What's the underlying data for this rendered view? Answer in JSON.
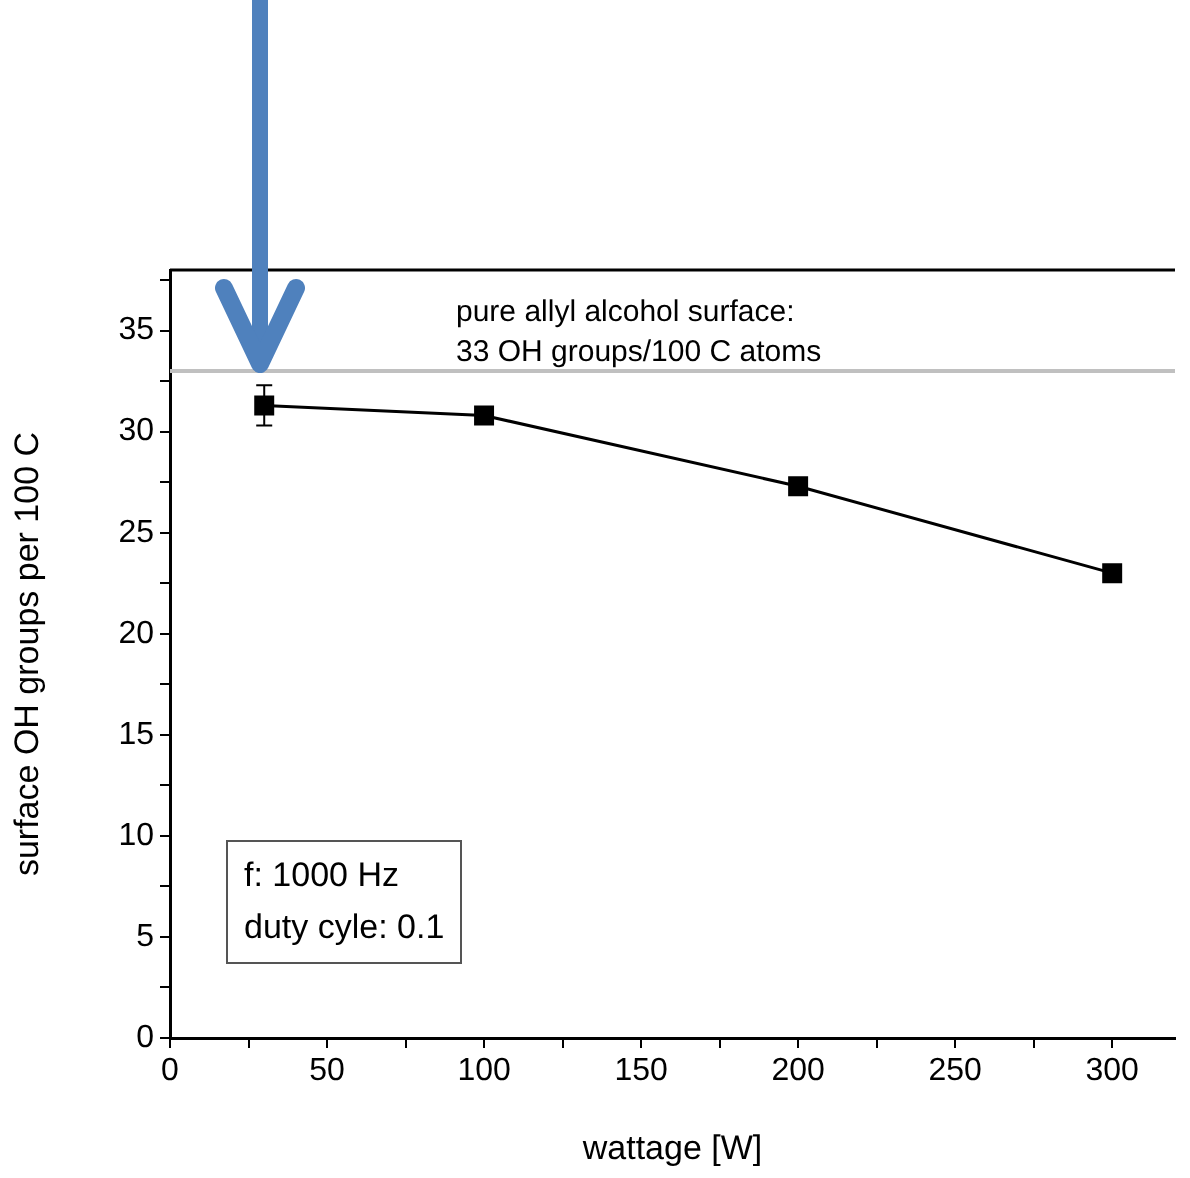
{
  "chart_data": {
    "type": "line",
    "xlabel": "wattage [W]",
    "ylabel": "surface OH groups per 100 C",
    "x": [
      30,
      100,
      200,
      300
    ],
    "series": [
      {
        "color": "#000000",
        "values": [
          31.3,
          30.8,
          27.3,
          23.0
        ],
        "errors": [
          1,
          null,
          null,
          null
        ]
      }
    ],
    "marker": "square",
    "line_style": "solid",
    "grid": false,
    "legend": false,
    "xlim": [
      0,
      320
    ],
    "xticks": [
      0,
      {
        "value": 25,
        "label": null
      },
      50,
      {
        "value": 75,
        "label": null
      },
      100,
      {
        "value": 125,
        "label": null
      },
      150,
      {
        "value": 175,
        "label": null
      },
      200,
      {
        "value": 225,
        "label": null
      },
      250,
      {
        "value": 275,
        "label": null
      },
      300
    ],
    "ylim": [
      0,
      38
    ],
    "yticks": [
      0,
      {
        "value": 2.5,
        "label": null
      },
      5,
      {
        "value": 7.5,
        "label": null
      },
      10,
      {
        "value": 12.5,
        "label": null
      },
      15,
      {
        "value": 17.5,
        "label": null
      },
      20,
      {
        "value": 22.5,
        "label": null
      },
      25,
      {
        "value": 27.5,
        "label": null
      },
      30,
      {
        "value": 32.5,
        "label": null
      },
      35,
      {
        "value": 37.5,
        "label": null
      }
    ],
    "ref_lines": [
      {
        "axis": "y",
        "value": 33,
        "label": "pure allyl alcohol surface:\n33 OH groups/100 C atoms",
        "color": "#c0c0c0"
      }
    ],
    "annotations": [
      "f: 1000 Hz\nduty cyle: 0.1"
    ]
  }
}
